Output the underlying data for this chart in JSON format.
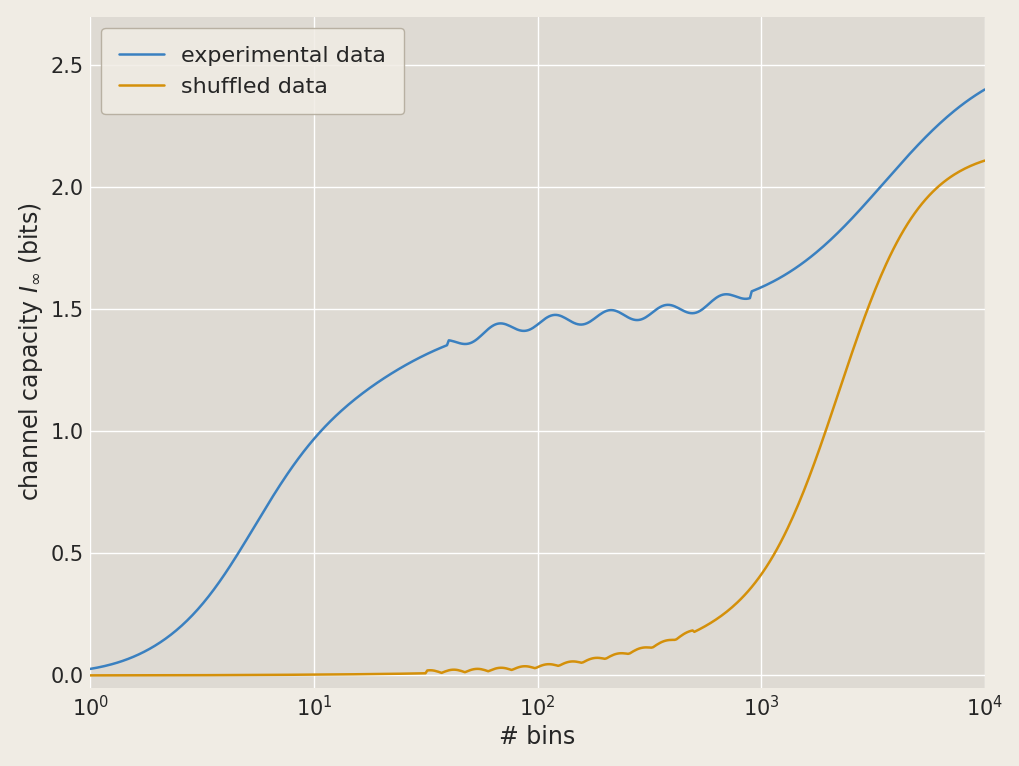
{
  "title": "",
  "xlabel": "# bins",
  "ylabel": "channel capacity $I_{\\infty}$ (bits)",
  "xlim_log": [
    0,
    4
  ],
  "ylim": [
    -0.05,
    2.7
  ],
  "yticks": [
    0.0,
    0.5,
    1.0,
    1.5,
    2.0,
    2.5
  ],
  "background_color": "#dedad3",
  "fig_background_color": "#f0ece4",
  "blue_color": "#3a80c0",
  "orange_color": "#d4900a",
  "legend_labels": [
    "experimental data",
    "shuffled data"
  ],
  "line_width": 1.8,
  "font_size": 15,
  "label_font_size": 17,
  "legend_font_size": 16
}
